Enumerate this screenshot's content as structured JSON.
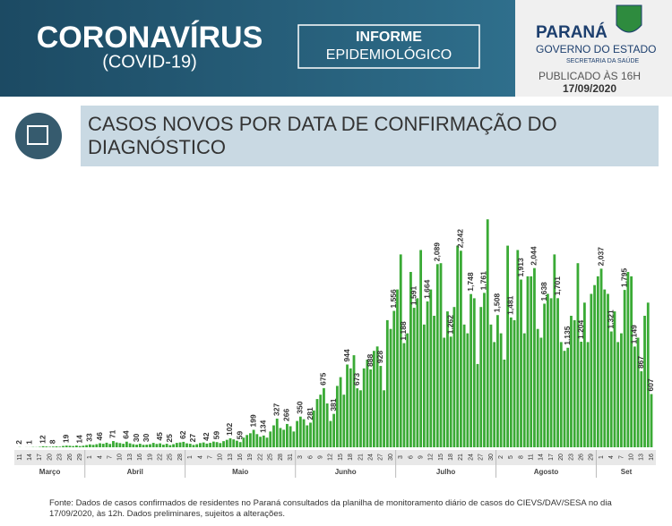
{
  "header": {
    "title": "CORONAVÍRUS",
    "subtitle": "(COVID-19)",
    "badge_line1": "INFORME",
    "badge_line2": "EPIDEMIOLÓGICO",
    "state": "PARANÁ",
    "government": "GOVERNO DO ESTADO",
    "department": "SECRETARIA DA SAÚDE",
    "published": "PUBLICADO ÀS 16H",
    "date": "17/09/2020"
  },
  "section_title_line1": "CASOS NOVOS POR DATA DE CONFIRMAÇÃO DO",
  "section_title_line2": "DIAGNÓSTICO",
  "chart_data": {
    "type": "bar",
    "color": "#3aaa35",
    "months": [
      "Março",
      "Abril",
      "Maio",
      "Junho",
      "Julho",
      "Agosto",
      "Set"
    ],
    "categories": [
      "11",
      null,
      null,
      "14",
      null,
      null,
      "17",
      null,
      null,
      "20",
      null,
      null,
      "23",
      null,
      null,
      "26",
      null,
      null,
      "29",
      null,
      null,
      "1",
      null,
      null,
      "4",
      null,
      null,
      "7",
      null,
      null,
      "10",
      null,
      null,
      "13",
      null,
      null,
      "16",
      null,
      null,
      "19",
      null,
      null,
      "22",
      null,
      null,
      "25",
      null,
      null,
      "28",
      null,
      null,
      "1",
      null,
      null,
      "4",
      null,
      null,
      "7",
      null,
      null,
      "10",
      null,
      null,
      "13",
      null,
      null,
      "16",
      null,
      null,
      "19",
      null,
      null,
      "22",
      null,
      null,
      "25",
      null,
      null,
      "28",
      null,
      null,
      "31",
      null,
      null,
      "3",
      null,
      null,
      "6",
      null,
      null,
      "9",
      null,
      null,
      "12",
      null,
      null,
      "15",
      null,
      null,
      "18",
      null,
      null,
      "21",
      null,
      null,
      "24",
      null,
      null,
      "27",
      null,
      null,
      "30",
      null,
      null,
      "3",
      null,
      null,
      "6",
      null,
      null,
      "9",
      null,
      null,
      "12",
      null,
      null,
      "15",
      null,
      null,
      "18",
      null,
      null,
      "21",
      null,
      null,
      "24",
      null,
      null,
      "27",
      null,
      null,
      "30",
      null,
      null,
      "2",
      null,
      null,
      "5",
      null,
      null,
      "8",
      null,
      null,
      "11",
      null,
      null,
      "14",
      null,
      null,
      "17",
      null,
      null,
      "20",
      null,
      null,
      "23",
      null,
      null,
      "26",
      null,
      null,
      "29",
      null,
      null,
      "1",
      null,
      null,
      "4",
      null,
      null,
      "7",
      null,
      null,
      "10",
      null,
      null,
      "13",
      null,
      null,
      "16"
    ],
    "values": [
      2,
      0,
      1,
      1,
      3,
      2,
      5,
      12,
      9,
      6,
      8,
      10,
      7,
      15,
      19,
      17,
      14,
      20,
      14,
      18,
      25,
      33,
      28,
      35,
      46,
      40,
      52,
      38,
      71,
      55,
      48,
      40,
      64,
      45,
      35,
      30,
      40,
      28,
      30,
      35,
      50,
      38,
      45,
      30,
      40,
      25,
      35,
      50,
      55,
      62,
      45,
      40,
      27,
      35,
      48,
      55,
      42,
      50,
      65,
      59,
      48,
      70,
      85,
      102,
      90,
      75,
      59,
      110,
      140,
      160,
      199,
      150,
      120,
      134,
      110,
      180,
      250,
      327,
      220,
      200,
      266,
      240,
      180,
      300,
      350,
      320,
      250,
      281,
      420,
      550,
      600,
      675,
      500,
      300,
      381,
      700,
      800,
      600,
      944,
      900,
      1050,
      673,
      650,
      900,
      1000,
      888,
      1100,
      1150,
      928,
      650,
      1450,
      1350,
      1556,
      1800,
      2200,
      1188,
      1300,
      2000,
      1591,
      1700,
      2250,
      1400,
      1664,
      1800,
      1500,
      2089,
      2100,
      1250,
      1550,
      1262,
      1600,
      2300,
      2242,
      1400,
      1300,
      1748,
      1700,
      950,
      1600,
      1761,
      2600,
      1400,
      1200,
      1508,
      1300,
      1000,
      2300,
      1481,
      1450,
      2250,
      1913,
      1300,
      1950,
      1950,
      2044,
      1350,
      1250,
      1638,
      1750,
      1700,
      2200,
      1701,
      1200,
      1100,
      1135,
      1500,
      1450,
      2100,
      1204,
      1650,
      1200,
      1750,
      1850,
      1950,
      2037,
      1800,
      1750,
      1321,
      1550,
      1200,
      1300,
      1795,
      2000,
      1950,
      1149,
      1250,
      867,
      1500,
      1650,
      607
    ],
    "value_labels": [
      "2",
      null,
      null,
      "1",
      null,
      null,
      null,
      "12",
      null,
      null,
      "8",
      null,
      null,
      null,
      "19",
      null,
      null,
      null,
      "14",
      null,
      null,
      "33",
      null,
      null,
      "46",
      null,
      null,
      null,
      "71",
      null,
      null,
      null,
      "64",
      null,
      null,
      "30",
      null,
      null,
      "30",
      null,
      null,
      null,
      "45",
      null,
      null,
      "25",
      null,
      null,
      null,
      "62",
      null,
      null,
      "27",
      null,
      null,
      null,
      "42",
      null,
      null,
      "59",
      null,
      null,
      null,
      "102",
      null,
      null,
      "59",
      null,
      null,
      null,
      "199",
      null,
      null,
      "134",
      null,
      null,
      null,
      "327",
      null,
      null,
      "266",
      null,
      null,
      null,
      "350",
      null,
      null,
      "281",
      null,
      null,
      null,
      "675",
      null,
      null,
      "381",
      null,
      null,
      null,
      "944",
      null,
      null,
      "673",
      null,
      null,
      null,
      "888",
      null,
      null,
      "928",
      null,
      null,
      null,
      "1,556",
      null,
      null,
      "1,188",
      null,
      null,
      "1,591",
      null,
      null,
      null,
      "1,664",
      null,
      null,
      "2,089",
      null,
      null,
      null,
      "1,262",
      null,
      null,
      "2,242",
      null,
      null,
      "1,748",
      null,
      null,
      null,
      "1,761",
      null,
      null,
      null,
      "1,508",
      null,
      null,
      null,
      "1,481",
      null,
      null,
      "1,913",
      null,
      null,
      null,
      "2,044",
      null,
      null,
      "1,638",
      null,
      null,
      null,
      "1,701",
      null,
      null,
      "1,135",
      null,
      null,
      null,
      "1,204",
      null,
      null,
      null,
      null,
      null,
      "2,037",
      null,
      null,
      "1,321",
      null,
      null,
      null,
      "1,795",
      null,
      null,
      "1,149",
      null,
      "867",
      null,
      null,
      "607"
    ]
  },
  "source": "Fonte: Dados de casos confirmados de residentes no Paraná consultados da planilha de monitoramento diário de casos do CIEVS/DAV/SESA no dia 17/09/2020, às 12h. Dados preliminares, sujeitos a alterações."
}
